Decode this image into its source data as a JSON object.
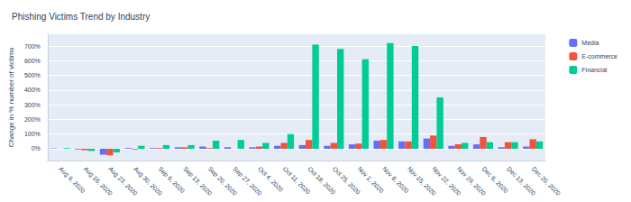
{
  "chart_data": {
    "type": "bar",
    "title": "Phishing Victims Trend by Industry",
    "y_label": "Change in % number of victims",
    "categories": [
      "Aug 9, 2020",
      "Aug 16, 2020",
      "Aug 23, 2020",
      "Aug 30, 2020",
      "Sep 6, 2020",
      "Sep 13, 2020",
      "Sep 20, 2020",
      "Sep 27, 2020",
      "Oct 4, 2020",
      "Oct 11, 2020",
      "Oct 18, 2020",
      "Oct 25, 2020",
      "Nov 1, 2020",
      "Nov 8, 2020",
      "Nov 15, 2020",
      "Nov 22, 2020",
      "Nov 29, 2020",
      "Dec 6, 2020",
      "Dec 13, 2020",
      "Dec 20, 2020"
    ],
    "series": [
      {
        "name": "Media",
        "color": "#636efa",
        "values": [
          2,
          -5,
          -40,
          5,
          5,
          10,
          15,
          10,
          10,
          20,
          25,
          20,
          30,
          55,
          50,
          70,
          20,
          30,
          10,
          15
        ]
      },
      {
        "name": "E-commerce",
        "color": "#ef553b",
        "values": [
          0,
          -10,
          -45,
          -5,
          5,
          10,
          5,
          0,
          15,
          40,
          60,
          40,
          35,
          60,
          50,
          90,
          30,
          80,
          45,
          65
        ]
      },
      {
        "name": "Financial",
        "color": "#00cc96",
        "values": [
          5,
          -15,
          -25,
          20,
          25,
          25,
          55,
          60,
          40,
          100,
          710,
          680,
          610,
          720,
          700,
          350,
          40,
          45,
          45,
          50
        ]
      }
    ],
    "ylim": [
      -80,
      780
    ],
    "yticks": [
      {
        "value": 0,
        "label": "0%"
      },
      {
        "value": 100,
        "label": "100%"
      },
      {
        "value": 200,
        "label": "200%"
      },
      {
        "value": 300,
        "label": "300%"
      },
      {
        "value": 400,
        "label": "400%"
      },
      {
        "value": 500,
        "label": "500%"
      },
      {
        "value": 600,
        "label": "600%"
      },
      {
        "value": 700,
        "label": "700%"
      }
    ],
    "grid": true,
    "legend": "top-right"
  }
}
